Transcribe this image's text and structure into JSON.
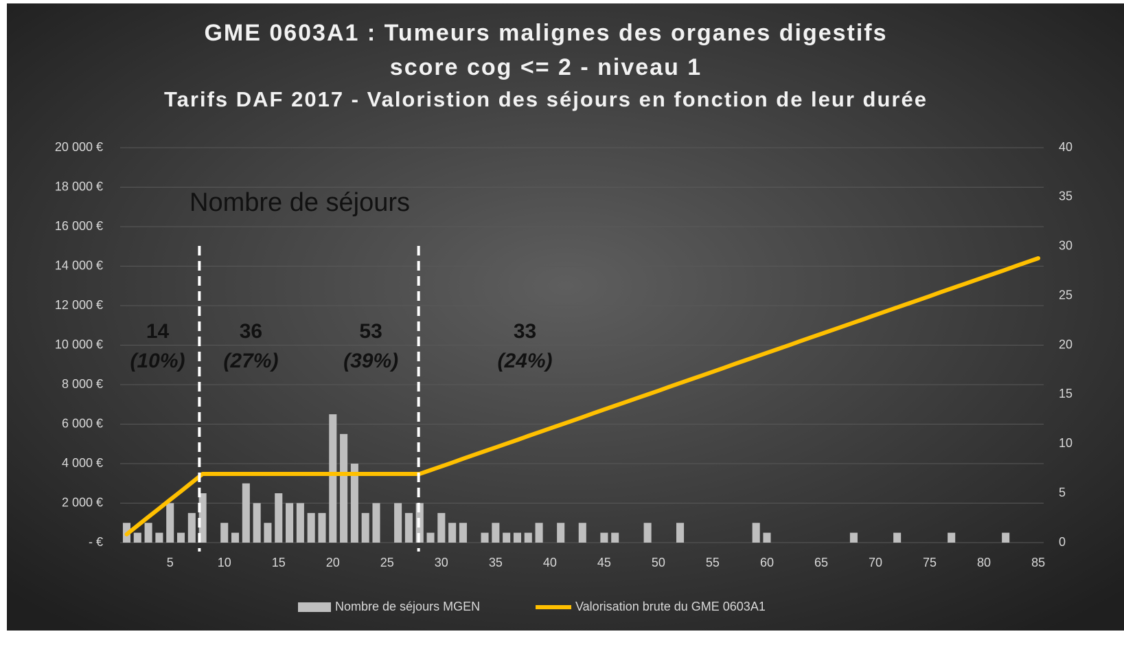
{
  "chart_data": {
    "type": "combo",
    "title": "GME 0603A1  : Tumeurs malignes des organes digestifs",
    "subtitle": "score cog <= 2 - niveau 1",
    "subtitle2": "Tarifs DAF 2017 - Valoristion des séjours en fonction de leur durée",
    "annotation": "Nombre de séjours",
    "groups": {
      "values": [
        14,
        36,
        53,
        33
      ],
      "share_labels": [
        "(10%)",
        "(27%)",
        "(39%)",
        "(24%)"
      ]
    },
    "x": [
      1,
      2,
      3,
      4,
      5,
      6,
      7,
      8,
      9,
      10,
      11,
      12,
      13,
      14,
      15,
      16,
      17,
      18,
      19,
      20,
      21,
      22,
      23,
      24,
      25,
      26,
      27,
      28,
      29,
      30,
      31,
      32,
      33,
      34,
      35,
      36,
      37,
      38,
      39,
      40,
      41,
      42,
      43,
      44,
      45,
      46,
      47,
      48,
      49,
      50,
      51,
      52,
      53,
      54,
      55,
      56,
      57,
      58,
      59,
      60,
      61,
      62,
      63,
      64,
      65,
      66,
      67,
      68,
      69,
      70,
      71,
      72,
      73,
      74,
      75,
      76,
      77,
      78,
      79,
      80,
      81,
      82,
      83,
      84,
      85
    ],
    "xlim": [
      0.4,
      85.5
    ],
    "xticks": [
      5,
      10,
      15,
      20,
      25,
      30,
      35,
      40,
      45,
      50,
      55,
      60,
      65,
      70,
      75,
      80,
      85
    ],
    "ylim": [
      0,
      20000
    ],
    "yticks": [
      {
        "value": 0,
        "label": "- €"
      },
      {
        "value": 2000,
        "label": "2 000 €"
      },
      {
        "value": 4000,
        "label": "4 000 €"
      },
      {
        "value": 6000,
        "label": "6 000 €"
      },
      {
        "value": 8000,
        "label": "8 000 €"
      },
      {
        "value": 10000,
        "label": "10 000 €"
      },
      {
        "value": 12000,
        "label": "12 000 €"
      },
      {
        "value": 14000,
        "label": "14 000 €"
      },
      {
        "value": 16000,
        "label": "16 000 €"
      },
      {
        "value": 18000,
        "label": "18 000 €"
      },
      {
        "value": 20000,
        "label": "20 000 €"
      }
    ],
    "y2lim": [
      0,
      40
    ],
    "y2ticks": [
      0,
      5,
      10,
      15,
      20,
      25,
      30,
      35,
      40
    ],
    "grid": true,
    "legend": "bottom",
    "series": [
      {
        "name": "Nombre de séjours MGEN",
        "type": "bar",
        "axis": "y2",
        "color": "#bfbfbf",
        "values": [
          2,
          1,
          2,
          1,
          4,
          1,
          3,
          5,
          0,
          2,
          1,
          6,
          4,
          2,
          5,
          4,
          4,
          3,
          3,
          13,
          11,
          8,
          3,
          4,
          0,
          4,
          3,
          4,
          1,
          3,
          2,
          2,
          0,
          1,
          2,
          1,
          1,
          1,
          2,
          0,
          2,
          0,
          2,
          0,
          1,
          1,
          0,
          0,
          2,
          0,
          0,
          2,
          0,
          0,
          0,
          0,
          0,
          0,
          2,
          1,
          0,
          0,
          0,
          0,
          0,
          0,
          0,
          1,
          0,
          0,
          0,
          1,
          0,
          0,
          0,
          0,
          1,
          0,
          0,
          0,
          0,
          1,
          0,
          0,
          0
        ]
      },
      {
        "name": "Valorisation brute du GME 0603A1",
        "type": "line",
        "axis": "y",
        "color": "#ffc000",
        "values": [
          420,
          860,
          1300,
          1730,
          2170,
          2600,
          3040,
          3480,
          3480,
          3480,
          3480,
          3480,
          3480,
          3480,
          3480,
          3480,
          3480,
          3480,
          3480,
          3480,
          3480,
          3480,
          3480,
          3480,
          3480,
          3480,
          3480,
          3480,
          3670,
          3860,
          4050,
          4250,
          4440,
          4630,
          4820,
          5010,
          5200,
          5400,
          5590,
          5780,
          5970,
          6160,
          6350,
          6550,
          6740,
          6930,
          7120,
          7310,
          7500,
          7690,
          7890,
          8080,
          8270,
          8460,
          8650,
          8840,
          9040,
          9230,
          9420,
          9610,
          9800,
          9990,
          10190,
          10380,
          10570,
          10760,
          10950,
          11140,
          11330,
          11530,
          11720,
          11910,
          12100,
          12290,
          12480,
          12680,
          12870,
          13060,
          13250,
          13440,
          13630,
          13820,
          14020,
          14210,
          14400
        ]
      }
    ]
  }
}
